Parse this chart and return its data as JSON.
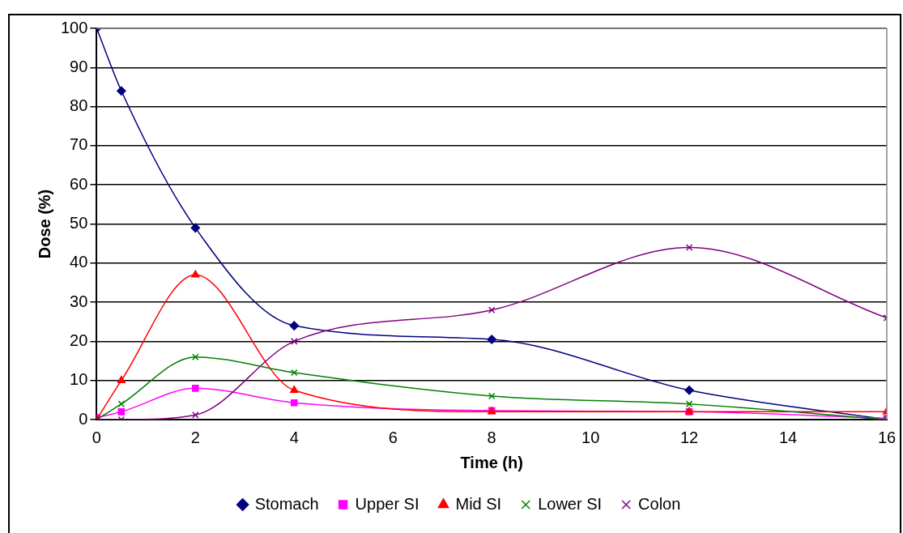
{
  "chart_data": {
    "type": "line",
    "xlabel": "Time (h)",
    "ylabel": "Dose (%)",
    "x": [
      0,
      0.5,
      2,
      4,
      8,
      12,
      16
    ],
    "xlim": [
      0,
      16
    ],
    "xticks": [
      0,
      2,
      4,
      6,
      8,
      10,
      12,
      14,
      16
    ],
    "ylim": [
      0,
      100
    ],
    "yticks": [
      0,
      10,
      20,
      30,
      40,
      50,
      60,
      70,
      80,
      90,
      100
    ],
    "grid": "y",
    "legend": "bottom",
    "line_style": "solid",
    "series": [
      {
        "name": "Stomach",
        "color": "#000080",
        "marker": "diamond",
        "values": [
          100,
          84,
          49,
          24,
          20.5,
          7.5,
          0
        ]
      },
      {
        "name": "Upper SI",
        "color": "#ff00ff",
        "marker": "square",
        "values": [
          0.5,
          2,
          8,
          4.3,
          2.3,
          2,
          0.3
        ]
      },
      {
        "name": "Mid SI",
        "color": "#ff0000",
        "marker": "triangle",
        "values": [
          0,
          10,
          37,
          7.5,
          2,
          2,
          2
        ]
      },
      {
        "name": "Lower SI",
        "color": "#008000",
        "marker": "cross",
        "values": [
          0,
          4,
          16,
          12,
          6,
          4,
          0
        ]
      },
      {
        "name": "Colon",
        "color": "#800080",
        "marker": "cross",
        "values": [
          0,
          0,
          1.2,
          20,
          28,
          44,
          26
        ]
      }
    ]
  }
}
